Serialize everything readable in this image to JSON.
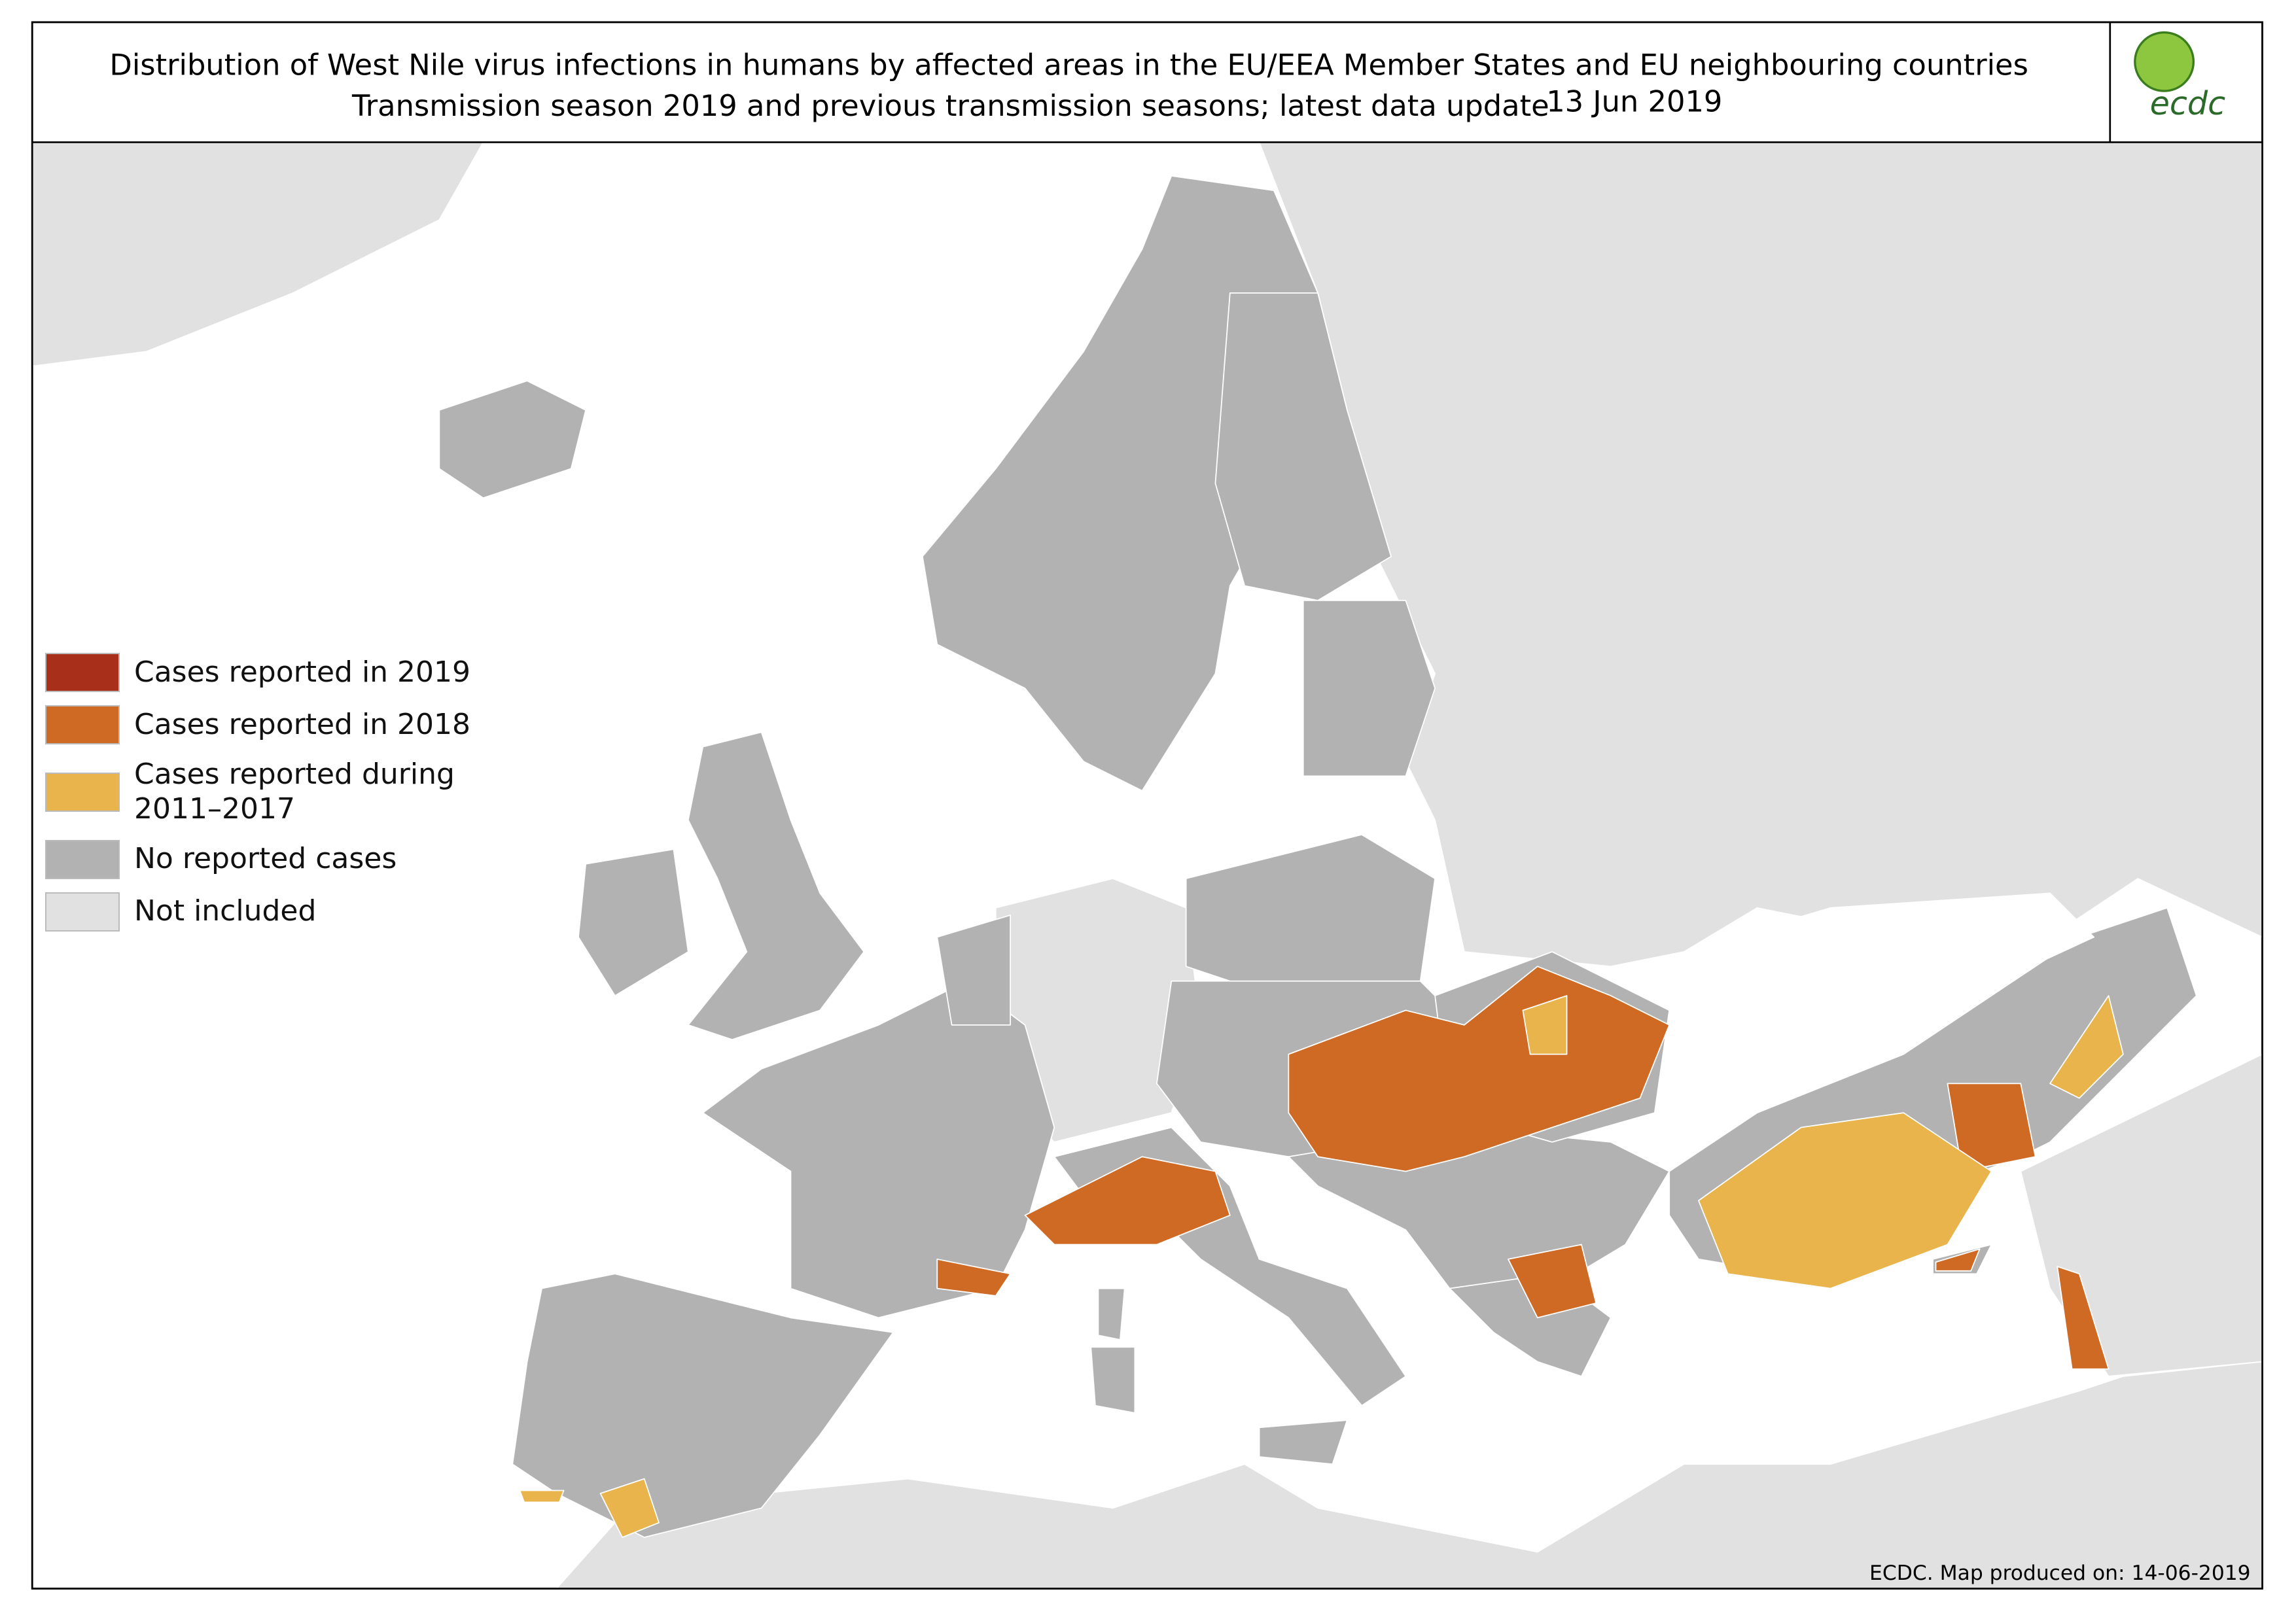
{
  "header": {
    "title": "Distribution of West Nile virus infections in humans by affected areas in the EU/EEA Member States and EU neighbouring countries",
    "subtitle": "Transmission season 2019 and previous transmission seasons; latest data update",
    "update_date": "13 Jun 2019"
  },
  "logo": {
    "text": "ecdc"
  },
  "legend": [
    {
      "label": "Cases reported in 2019",
      "color": "#a8301a"
    },
    {
      "label": "Cases reported in 2018",
      "color": "#cf6a24"
    },
    {
      "label": "Cases reported during 2011–2017",
      "color": "#e9b44c"
    },
    {
      "label": "No reported cases",
      "color": "#b2b2b2"
    },
    {
      "label": "Not included",
      "color": "#e1e1e1"
    }
  ],
  "footer": "ECDC. Map produced on: 14-06-2019"
}
